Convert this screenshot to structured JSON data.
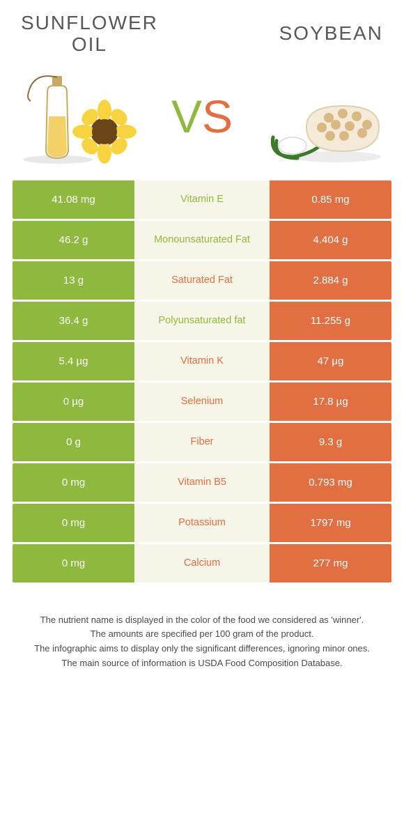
{
  "title_left": "SUNFLOWER\nOIL",
  "title_right": "SOYBEAN",
  "vs_v": "V",
  "vs_s": "S",
  "colors": {
    "left": "#8fb93e",
    "right": "#e16f42",
    "label_bg": "#f7f5e7",
    "text_gray": "#585858"
  },
  "rows": [
    {
      "left": "41.08 mg",
      "label": "Vitamin E",
      "right": "0.85 mg",
      "winner": "left"
    },
    {
      "left": "46.2 g",
      "label": "Monounsaturated Fat",
      "right": "4.404 g",
      "winner": "left"
    },
    {
      "left": "13 g",
      "label": "Saturated Fat",
      "right": "2.884 g",
      "winner": "right"
    },
    {
      "left": "36.4 g",
      "label": "Polyunsaturated fat",
      "right": "11.255 g",
      "winner": "left"
    },
    {
      "left": "5.4 µg",
      "label": "Vitamin K",
      "right": "47 µg",
      "winner": "right"
    },
    {
      "left": "0 µg",
      "label": "Selenium",
      "right": "17.8 µg",
      "winner": "right"
    },
    {
      "left": "0 g",
      "label": "Fiber",
      "right": "9.3 g",
      "winner": "right"
    },
    {
      "left": "0 mg",
      "label": "Vitamin B5",
      "right": "0.793 mg",
      "winner": "right"
    },
    {
      "left": "0 mg",
      "label": "Potassium",
      "right": "1797 mg",
      "winner": "right"
    },
    {
      "left": "0 mg",
      "label": "Calcium",
      "right": "277 mg",
      "winner": "right"
    }
  ],
  "footer": [
    "The nutrient name is displayed in the color of the food we considered as 'winner'.",
    "The amounts are specified per 100 gram of the product.",
    "The infographic aims to display only the significant differences, ignoring minor ones.",
    "The main source of information is USDA Food Composition Database."
  ]
}
